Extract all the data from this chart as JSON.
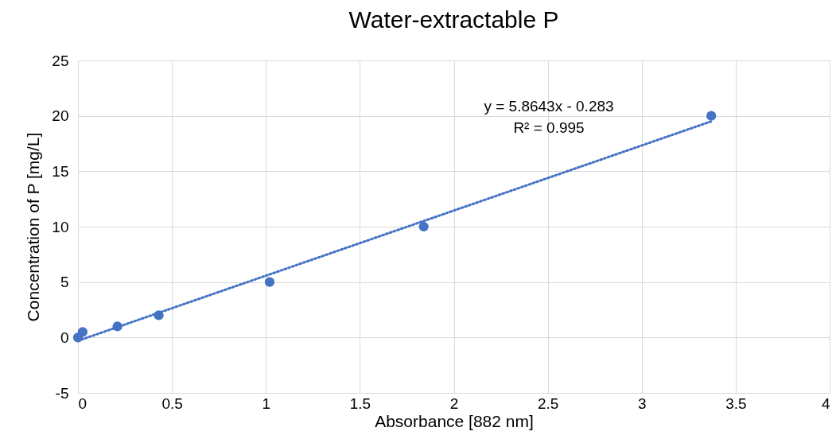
{
  "chart_data": {
    "type": "scatter",
    "title": "Water-extractable P",
    "xlabel": "Absorbance [882 nm]",
    "ylabel": "Concentration of P [mg/L]",
    "xlim": [
      0,
      4
    ],
    "xticks": [
      0,
      0.5,
      1,
      1.5,
      2,
      2.5,
      3,
      3.5,
      4
    ],
    "ylim": [
      -5,
      25
    ],
    "yticks": [
      -5,
      0,
      5,
      10,
      15,
      20,
      25
    ],
    "grid": true,
    "marker": "circle",
    "series": [
      {
        "color": "#4472c4",
        "x": [
          0,
          0.025,
          0.21,
          0.43,
          1.02,
          1.84,
          3.37
        ],
        "values": [
          0,
          0.5,
          1,
          2,
          5,
          10,
          20
        ]
      },
      {
        "type": "line",
        "color": "#4472c4",
        "line_style": "dotted",
        "marker": "none",
        "x": [
          0,
          3.37
        ],
        "values": [
          -0.3,
          19.5
        ]
      }
    ],
    "annotations": [
      "y = 5.8643x - 0.283",
      "R² = 0.995"
    ]
  }
}
